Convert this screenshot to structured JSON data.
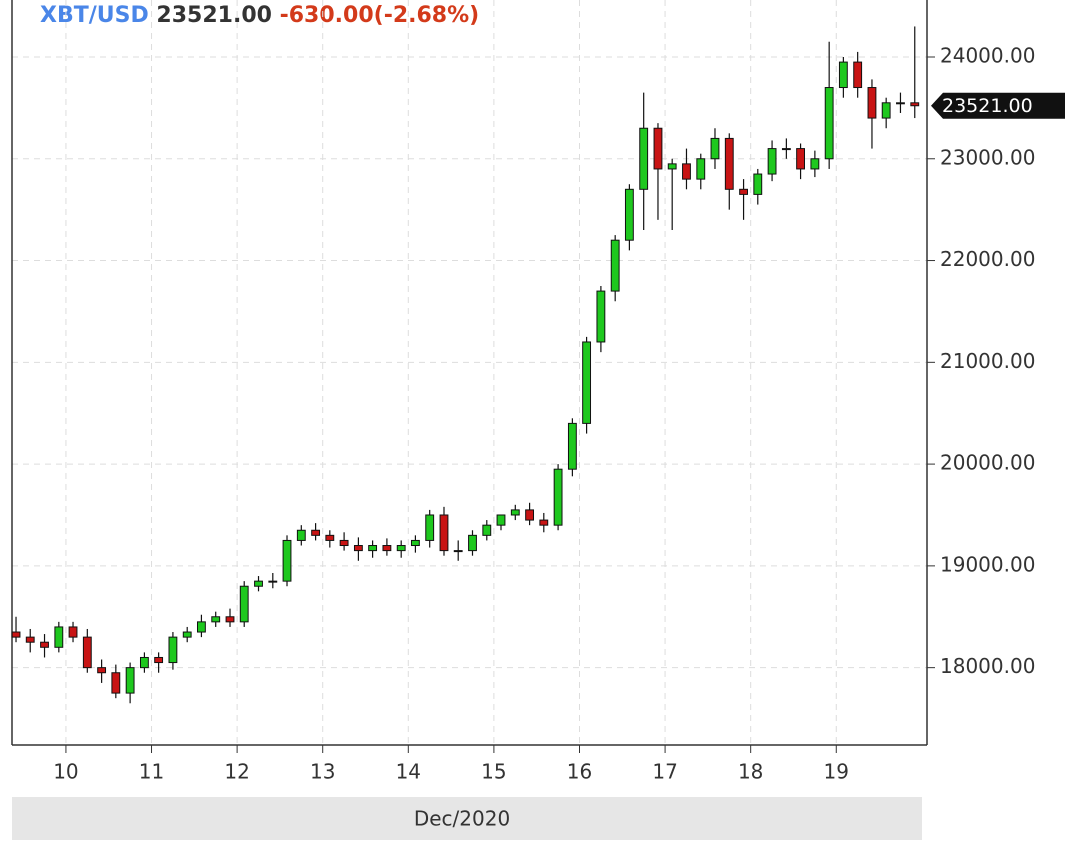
{
  "chart_data": {
    "type": "candlestick",
    "symbol": "XBT/USD",
    "price": "23521.00",
    "change": "-630.00(-2.68%)",
    "x_label": "Dec/2020",
    "x": [
      9.417,
      9.583,
      9.75,
      9.917,
      10.083,
      10.25,
      10.417,
      10.583,
      10.75,
      10.917,
      11.083,
      11.25,
      11.417,
      11.583,
      11.75,
      11.917,
      12.083,
      12.25,
      12.417,
      12.583,
      12.75,
      12.917,
      13.083,
      13.25,
      13.417,
      13.583,
      13.75,
      13.917,
      14.083,
      14.25,
      14.417,
      14.583,
      14.75,
      14.917,
      15.083,
      15.25,
      15.417,
      15.583,
      15.75,
      15.917,
      16.083,
      16.25,
      16.417,
      16.583,
      16.75,
      16.917,
      17.083,
      17.25,
      17.417,
      17.583,
      17.75,
      17.917,
      18.083,
      18.25,
      18.417,
      18.583,
      18.75,
      18.917,
      19.083,
      19.25,
      19.417,
      19.583,
      19.75,
      19.917
    ],
    "open": [
      18350,
      18300,
      18250,
      18200,
      18400,
      18300,
      18000,
      17950,
      17750,
      18000,
      18100,
      18050,
      18300,
      18350,
      18450,
      18500,
      18450,
      18800,
      18850,
      18850,
      19250,
      19350,
      19300,
      19250,
      19200,
      19150,
      19200,
      19150,
      19200,
      19250,
      19500,
      19150,
      19150,
      19300,
      19400,
      19500,
      19550,
      19450,
      19400,
      19950,
      20400,
      21200,
      21700,
      22200,
      22700,
      23300,
      22900,
      22950,
      22800,
      23000,
      23200,
      22700,
      22650,
      22850,
      23100,
      23100,
      22900,
      23000,
      23700,
      23950,
      23700,
      23400,
      23550,
      23550
    ],
    "high": [
      18500,
      18380,
      18330,
      18450,
      18450,
      18380,
      18080,
      18030,
      18050,
      18150,
      18150,
      18350,
      18400,
      18520,
      18550,
      18580,
      18850,
      18900,
      18930,
      19300,
      19400,
      19420,
      19350,
      19330,
      19280,
      19250,
      19270,
      19250,
      19300,
      19550,
      19580,
      19250,
      19350,
      19450,
      19480,
      19600,
      19620,
      19520,
      20000,
      20450,
      21250,
      21750,
      22250,
      22750,
      23650,
      23350,
      23000,
      23100,
      23050,
      23300,
      23250,
      22800,
      22900,
      23180,
      23200,
      23150,
      23080,
      24150,
      24000,
      24050,
      23780,
      23600,
      23650,
      24300
    ],
    "low": [
      18250,
      18150,
      18100,
      18150,
      18250,
      17950,
      17850,
      17700,
      17650,
      17950,
      17950,
      17980,
      18250,
      18300,
      18400,
      18400,
      18400,
      18750,
      18780,
      18800,
      19200,
      19250,
      19180,
      19150,
      19050,
      19080,
      19100,
      19080,
      19130,
      19180,
      19100,
      19050,
      19100,
      19250,
      19350,
      19450,
      19400,
      19330,
      19350,
      19880,
      20300,
      21100,
      21600,
      22100,
      22300,
      22400,
      22300,
      22700,
      22700,
      22900,
      22500,
      22400,
      22550,
      22780,
      23000,
      22800,
      22820,
      22900,
      23600,
      23600,
      23100,
      23300,
      23450,
      23400
    ],
    "close": [
      18300,
      18250,
      18200,
      18400,
      18300,
      18000,
      17950,
      17750,
      18000,
      18100,
      18050,
      18300,
      18350,
      18450,
      18500,
      18450,
      18800,
      18850,
      18850,
      19250,
      19350,
      19300,
      19250,
      19200,
      19150,
      19200,
      19150,
      19200,
      19250,
      19500,
      19150,
      19150,
      19300,
      19400,
      19500,
      19550,
      19450,
      19400,
      19950,
      20400,
      21200,
      21700,
      22200,
      22700,
      23300,
      22900,
      22950,
      22800,
      23000,
      23200,
      22700,
      22650,
      22850,
      23100,
      23100,
      22900,
      23000,
      23700,
      23950,
      23700,
      23400,
      23550,
      23550,
      23521
    ],
    "up_color": "#1ec81e",
    "down_color": "#c81414",
    "xlim": [
      9.37,
      20.06
    ],
    "xticks": [
      10,
      11,
      12,
      13,
      14,
      15,
      16,
      17,
      18,
      19
    ],
    "ylim": [
      17240,
      24560
    ],
    "yticks": [
      {
        "value": 18000,
        "label": "18000.00"
      },
      {
        "value": 19000,
        "label": "19000.00"
      },
      {
        "value": 20000,
        "label": "20000.00"
      },
      {
        "value": 21000,
        "label": "21000.00"
      },
      {
        "value": 22000,
        "label": "22000.00"
      },
      {
        "value": 23000,
        "label": "23000.00"
      },
      {
        "value": 24000,
        "label": "24000.00"
      }
    ],
    "grid": true
  }
}
